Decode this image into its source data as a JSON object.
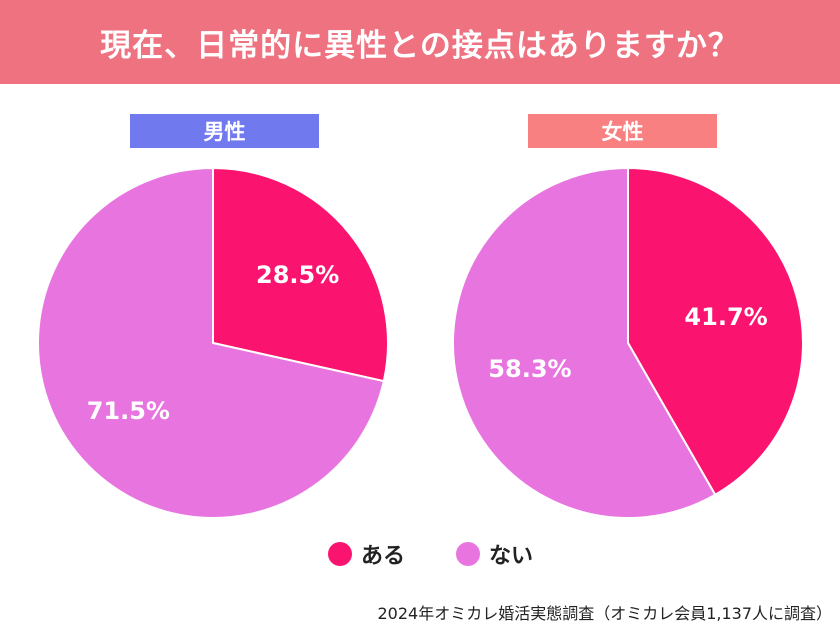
{
  "header": {
    "title": "現在、日常的に異性との接点はありますか？"
  },
  "chart_data": [
    {
      "type": "pie",
      "title": "男性",
      "categories": [
        "ある",
        "ない"
      ],
      "values": [
        28.5,
        71.5
      ],
      "labels": [
        "28.5%",
        "71.5%"
      ],
      "colors": [
        "#fa1470",
        "#e874e0"
      ]
    },
    {
      "type": "pie",
      "title": "女性",
      "categories": [
        "ある",
        "ない"
      ],
      "values": [
        41.7,
        58.3
      ],
      "labels": [
        "41.7%",
        "58.3%"
      ],
      "colors": [
        "#fa1470",
        "#e874e0"
      ]
    }
  ],
  "legend": {
    "placement": "bottom-center",
    "items": [
      {
        "label": "ある",
        "color": "#fa1470"
      },
      {
        "label": "ない",
        "color": "#e874e0"
      }
    ]
  },
  "source": "2024年オミカレ婚活実態調査（オミカレ会員1,137人に調査）",
  "colors": {
    "header": "#ee7280",
    "male_label": "#7079ee",
    "female_label": "#f98080"
  }
}
